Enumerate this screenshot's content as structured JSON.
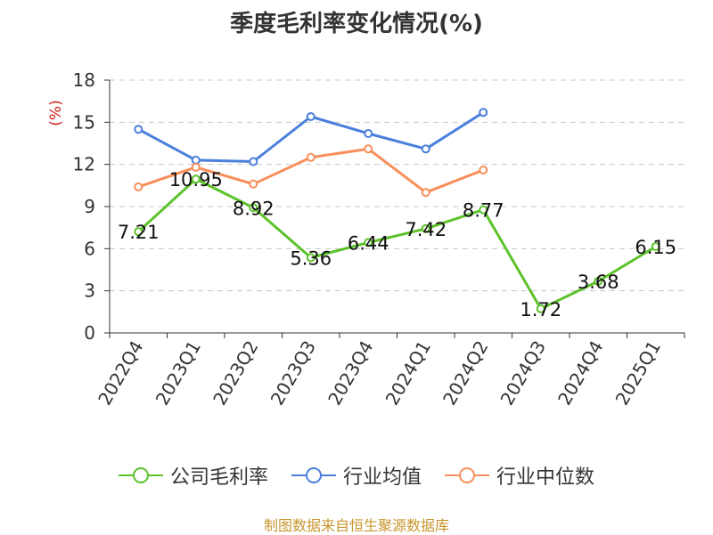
{
  "title": "季度毛利率变化情况(%)",
  "source": "制图数据来自恒生聚源数据库",
  "chart_data": {
    "type": "line",
    "title": "季度毛利率变化情况(%)",
    "ylabel": "(%)",
    "ylim": [
      0,
      18
    ],
    "yticks": [
      0,
      3,
      6,
      9,
      12,
      15,
      18
    ],
    "grid": true,
    "legend_position": "bottom",
    "categories": [
      "2022Q4",
      "2023Q1",
      "2023Q2",
      "2023Q3",
      "2023Q4",
      "2024Q1",
      "2024Q2",
      "2024Q3",
      "2024Q4",
      "2025Q1"
    ],
    "series": [
      {
        "name": "公司毛利率",
        "color": "#5cc22a",
        "show_labels": true,
        "values": [
          7.21,
          10.95,
          8.92,
          5.36,
          6.44,
          7.42,
          8.77,
          1.72,
          3.68,
          6.15
        ]
      },
      {
        "name": "行业均值",
        "color": "#4a7fdc",
        "show_labels": false,
        "values": [
          14.5,
          12.3,
          12.2,
          15.4,
          14.2,
          13.1,
          15.7,
          null,
          null,
          null
        ]
      },
      {
        "name": "行业中位数",
        "color": "#f98e5a",
        "show_labels": false,
        "values": [
          10.4,
          11.8,
          10.6,
          12.5,
          13.1,
          10.0,
          11.6,
          null,
          null,
          null
        ]
      }
    ]
  }
}
